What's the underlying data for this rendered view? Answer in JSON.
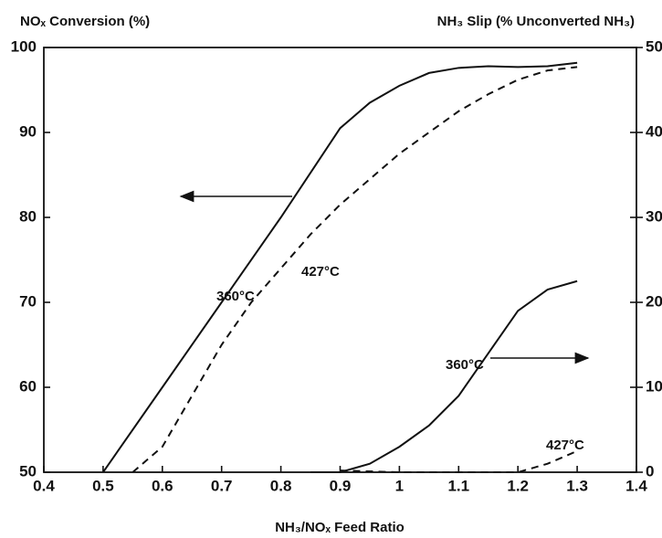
{
  "chart_data": {
    "type": "line",
    "title": "NOₓ Conversion (%)",
    "y2_title": "NH₃ Slip (% Unconverted NH₃)",
    "x_label": "NH₃/NOₓ Feed Ratio",
    "xlim": [
      0.4,
      1.4
    ],
    "xticks": [
      0.4,
      0.5,
      0.6,
      0.7,
      0.8,
      0.9,
      1,
      1.1,
      1.2,
      1.3,
      1.4
    ],
    "ylim": [
      50,
      100
    ],
    "yticks": [
      50,
      60,
      70,
      80,
      90,
      100
    ],
    "y2lim": [
      0,
      50
    ],
    "y2ticks": [
      0,
      10,
      20,
      30,
      40,
      50
    ],
    "grid": false,
    "series": [
      {
        "name": "360°C",
        "color": "#111111",
        "line_style": "solid",
        "axis": "y",
        "x": [
          0.5,
          0.6,
          0.7,
          0.8,
          0.9,
          0.95,
          1.0,
          1.05,
          1.1,
          1.15,
          1.2,
          1.25,
          1.3
        ],
        "values": [
          50,
          60,
          70,
          80,
          90.5,
          93.5,
          95.5,
          97,
          97.6,
          97.8,
          97.7,
          97.8,
          98.2
        ]
      },
      {
        "name": "427°C",
        "color": "#111111",
        "line_style": "dashed",
        "axis": "y",
        "x": [
          0.55,
          0.6,
          0.65,
          0.7,
          0.75,
          0.8,
          0.85,
          0.9,
          0.95,
          1.0,
          1.05,
          1.1,
          1.15,
          1.2,
          1.25,
          1.3
        ],
        "values": [
          50,
          53,
          59,
          65,
          70,
          74,
          78,
          81.5,
          84.5,
          87.5,
          90,
          92.5,
          94.5,
          96.2,
          97.3,
          97.7
        ]
      },
      {
        "name": "360°C",
        "color": "#111111",
        "line_style": "solid",
        "axis": "y2",
        "x": [
          0.85,
          0.9,
          0.95,
          1.0,
          1.05,
          1.1,
          1.15,
          1.2,
          1.25,
          1.3
        ],
        "values": [
          0,
          0,
          1,
          3,
          5.5,
          9,
          14,
          19,
          21.5,
          22.5
        ]
      },
      {
        "name": "427°C",
        "color": "#111111",
        "line_style": "dashed",
        "axis": "y2",
        "x": [
          0.9,
          1.0,
          1.1,
          1.2,
          1.25,
          1.3
        ],
        "values": [
          0.2,
          0,
          0,
          0,
          1,
          2.5
        ]
      }
    ]
  }
}
